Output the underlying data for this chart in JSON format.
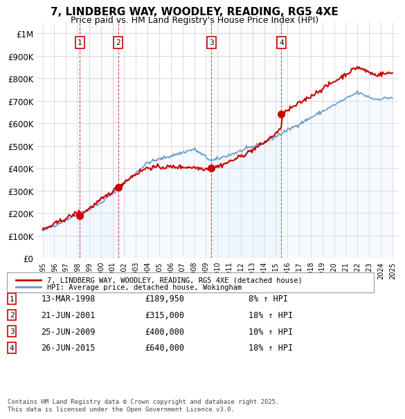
{
  "title": "7, LINDBERG WAY, WOODLEY, READING, RG5 4XE",
  "subtitle": "Price paid vs. HM Land Registry's House Price Index (HPI)",
  "legend_property": "7, LINDBERG WAY, WOODLEY, READING, RG5 4XE (detached house)",
  "legend_hpi": "HPI: Average price, detached house, Wokingham",
  "property_color": "#cc0000",
  "hpi_color": "#6699cc",
  "background_color": "#ffffff",
  "plot_bg_color": "#ffffff",
  "grid_color": "#cccccc",
  "hpi_fill_color": "#ddeeff",
  "footnote": "Contains HM Land Registry data © Crown copyright and database right 2025.\nThis data is licensed under the Open Government Licence v3.0.",
  "sales": [
    {
      "date": 1998.19,
      "price": 189950,
      "label": "1"
    },
    {
      "date": 2001.47,
      "price": 315000,
      "label": "2"
    },
    {
      "date": 2009.48,
      "price": 400000,
      "label": "3"
    },
    {
      "date": 2015.48,
      "price": 640000,
      "label": "4"
    }
  ],
  "sale_table": [
    [
      "1",
      "13-MAR-1998",
      "£189,950",
      "8% ↑ HPI"
    ],
    [
      "2",
      "21-JUN-2001",
      "£315,000",
      "18% ↑ HPI"
    ],
    [
      "3",
      "25-JUN-2009",
      "£400,000",
      "10% ↑ HPI"
    ],
    [
      "4",
      "26-JUN-2015",
      "£640,000",
      "18% ↑ HPI"
    ]
  ],
  "ylim": [
    0,
    1050000
  ],
  "xlim": [
    1994.5,
    2025.5
  ],
  "yticks": [
    0,
    100000,
    200000,
    300000,
    400000,
    500000,
    600000,
    700000,
    800000,
    900000,
    1000000
  ],
  "ytick_labels": [
    "£0",
    "£100K",
    "£200K",
    "£300K",
    "£400K",
    "£500K",
    "£600K",
    "£700K",
    "£800K",
    "£900K",
    "£1M"
  ]
}
